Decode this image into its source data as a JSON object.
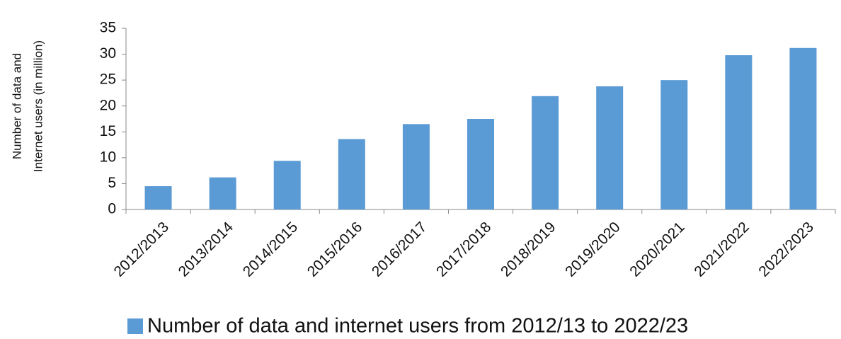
{
  "chart_data": {
    "type": "bar",
    "ylabel": [
      "Number of data and",
      "Internet users (in million)"
    ],
    "categories": [
      "2012/2013",
      "2013/2014",
      "2014/2015",
      "2015/2016",
      "2016/2017",
      "2017/2018",
      "2018/2019",
      "2019/2020",
      "2020/2021",
      "2021/2022",
      "2022/2023"
    ],
    "series": [
      {
        "name": "Number of data and internet users from 2012/13 to 2022/23",
        "color": "#5b9bd5",
        "values": [
          4.5,
          6.2,
          9.4,
          13.6,
          16.5,
          17.5,
          21.9,
          23.8,
          25.0,
          29.8,
          31.2
        ]
      }
    ],
    "ylim": [
      0,
      35
    ],
    "yticks": [
      0,
      5,
      10,
      15,
      20,
      25,
      30,
      35
    ],
    "grid": false,
    "legend": "bottom"
  }
}
